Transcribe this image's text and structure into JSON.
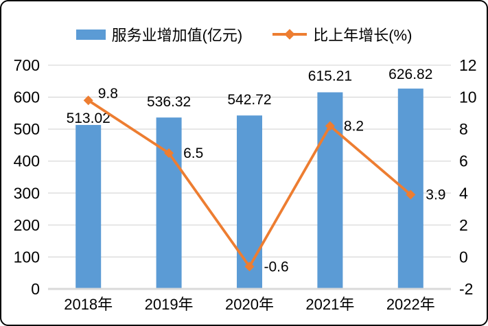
{
  "chart_data": {
    "type": "combo",
    "categories": [
      "2018年",
      "2019年",
      "2020年",
      "2021年",
      "2022年"
    ],
    "series": [
      {
        "name": "服务业增加值(亿元)",
        "type": "bar",
        "axis": "left",
        "color": "#5B9BD5",
        "values": [
          513.02,
          536.32,
          542.72,
          615.21,
          626.82
        ],
        "labels": [
          "513.02",
          "536.32",
          "542.72",
          "615.21",
          "626.82"
        ]
      },
      {
        "name": "比上年增长(%)",
        "type": "line",
        "axis": "right",
        "color": "#ED7D31",
        "marker": "diamond",
        "values": [
          9.8,
          6.5,
          -0.6,
          8.2,
          3.9
        ],
        "labels": [
          "9.8",
          "6.5",
          "-0.6",
          "8.2",
          "3.9"
        ]
      }
    ],
    "left_axis": {
      "min": 0,
      "max": 700,
      "step": 100,
      "ticks": [
        "0",
        "100",
        "200",
        "300",
        "400",
        "500",
        "600",
        "700"
      ]
    },
    "right_axis": {
      "min": -2,
      "max": 12,
      "step": 2,
      "ticks": [
        "-2",
        "0",
        "2",
        "4",
        "6",
        "8",
        "10",
        "12"
      ]
    },
    "grid": true,
    "legend_position": "top",
    "colors": {
      "bar": "#5B9BD5",
      "line": "#ED7D31",
      "gridline": "#D9D9D9",
      "text": "#000000",
      "background": "#FFFFFF",
      "border": "#000000"
    }
  }
}
